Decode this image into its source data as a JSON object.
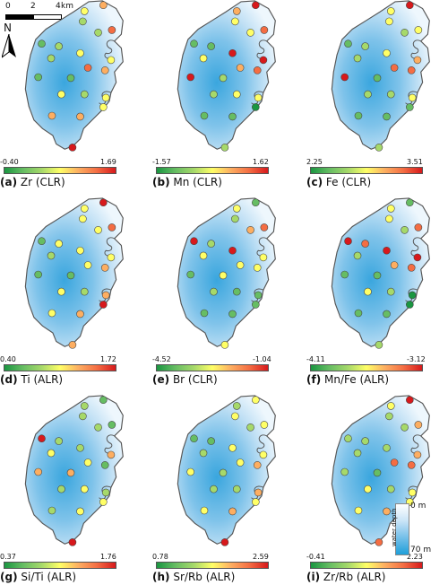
{
  "scalebar": {
    "ticks": [
      "0",
      "2",
      "4"
    ],
    "unit": "km"
  },
  "north_label": "N",
  "legend": {
    "top": "0 m",
    "bottom": "70 m",
    "title": "water depth"
  },
  "panels": [
    {
      "id": "(a)",
      "name": "Zr (CLR)",
      "min": "-0.40",
      "max": "1.69",
      "points": [
        [
          117,
          6,
          4
        ],
        [
          95,
          13,
          3
        ],
        [
          93,
          25,
          2
        ],
        [
          127,
          35,
          5
        ],
        [
          111,
          38,
          2
        ],
        [
          45,
          51,
          1
        ],
        [
          65,
          54,
          2
        ],
        [
          90,
          62,
          3
        ],
        [
          56,
          68,
          2
        ],
        [
          41,
          90,
          1
        ],
        [
          79,
          91,
          1
        ],
        [
          99,
          79,
          5
        ],
        [
          119,
          82,
          4
        ],
        [
          126,
          70,
          3
        ],
        [
          68,
          110,
          3
        ],
        [
          95,
          110,
          2
        ],
        [
          120,
          114,
          3
        ],
        [
          117,
          125,
          3
        ],
        [
          57,
          135,
          4
        ],
        [
          90,
          136,
          4
        ],
        [
          81,
          172,
          6
        ]
      ]
    },
    {
      "id": "(b)",
      "name": "Mn (CLR)",
      "min": "-1.57",
      "max": "1.62",
      "points": [
        [
          117,
          6,
          6
        ],
        [
          95,
          13,
          4
        ],
        [
          93,
          25,
          3
        ],
        [
          127,
          35,
          5
        ],
        [
          111,
          38,
          3
        ],
        [
          45,
          51,
          1
        ],
        [
          65,
          54,
          1
        ],
        [
          90,
          62,
          6
        ],
        [
          56,
          68,
          3
        ],
        [
          41,
          90,
          6
        ],
        [
          79,
          91,
          2
        ],
        [
          99,
          79,
          4
        ],
        [
          119,
          82,
          5
        ],
        [
          126,
          70,
          6
        ],
        [
          68,
          110,
          2
        ],
        [
          95,
          110,
          3
        ],
        [
          120,
          114,
          3
        ],
        [
          117,
          125,
          0
        ],
        [
          57,
          135,
          1
        ],
        [
          90,
          136,
          1
        ],
        [
          81,
          172,
          2
        ]
      ]
    },
    {
      "id": "(c)",
      "name": "Fe (CLR)",
      "min": "2.25",
      "max": "3.51",
      "points": [
        [
          117,
          6,
          6
        ],
        [
          95,
          13,
          3
        ],
        [
          93,
          25,
          3
        ],
        [
          127,
          35,
          3
        ],
        [
          111,
          38,
          2
        ],
        [
          45,
          51,
          1
        ],
        [
          65,
          54,
          2
        ],
        [
          90,
          62,
          3
        ],
        [
          56,
          68,
          2
        ],
        [
          41,
          90,
          6
        ],
        [
          79,
          91,
          1
        ],
        [
          99,
          79,
          5
        ],
        [
          119,
          82,
          5
        ],
        [
          126,
          70,
          4
        ],
        [
          68,
          110,
          2
        ],
        [
          95,
          110,
          2
        ],
        [
          120,
          114,
          3
        ],
        [
          117,
          125,
          1
        ],
        [
          57,
          135,
          1
        ],
        [
          90,
          136,
          1
        ],
        [
          81,
          172,
          2
        ]
      ]
    },
    {
      "id": "(d)",
      "name": "Ti (ALR)",
      "min": "0.40",
      "max": "1.72",
      "points": [
        [
          117,
          6,
          6
        ],
        [
          95,
          13,
          3
        ],
        [
          93,
          25,
          3
        ],
        [
          127,
          35,
          5
        ],
        [
          111,
          38,
          3
        ],
        [
          45,
          51,
          1
        ],
        [
          65,
          54,
          3
        ],
        [
          90,
          62,
          3
        ],
        [
          56,
          68,
          2
        ],
        [
          41,
          90,
          1
        ],
        [
          79,
          91,
          1
        ],
        [
          99,
          79,
          3
        ],
        [
          119,
          82,
          4
        ],
        [
          126,
          70,
          3
        ],
        [
          68,
          110,
          3
        ],
        [
          95,
          110,
          2
        ],
        [
          120,
          114,
          4
        ],
        [
          117,
          125,
          6
        ],
        [
          57,
          135,
          3
        ],
        [
          90,
          136,
          4
        ],
        [
          81,
          172,
          4
        ]
      ]
    },
    {
      "id": "(e)",
      "name": "Br (CLR)",
      "min": "-4.52",
      "max": "-1.04",
      "points": [
        [
          117,
          6,
          1
        ],
        [
          95,
          13,
          3
        ],
        [
          93,
          25,
          2
        ],
        [
          127,
          35,
          5
        ],
        [
          111,
          38,
          4
        ],
        [
          45,
          51,
          6
        ],
        [
          65,
          54,
          2
        ],
        [
          90,
          62,
          6
        ],
        [
          56,
          68,
          3
        ],
        [
          41,
          90,
          1
        ],
        [
          79,
          91,
          3
        ],
        [
          99,
          79,
          3
        ],
        [
          119,
          82,
          3
        ],
        [
          126,
          70,
          3
        ],
        [
          68,
          110,
          2
        ],
        [
          95,
          110,
          1
        ],
        [
          120,
          114,
          1
        ],
        [
          117,
          125,
          1
        ],
        [
          57,
          135,
          1
        ],
        [
          90,
          136,
          1
        ],
        [
          81,
          172,
          3
        ]
      ]
    },
    {
      "id": "(f)",
      "name": "Mn/Fe (ALR)",
      "min": "-4.11",
      "max": "-3.12",
      "points": [
        [
          117,
          6,
          1
        ],
        [
          95,
          13,
          3
        ],
        [
          93,
          25,
          3
        ],
        [
          127,
          35,
          5
        ],
        [
          111,
          38,
          2
        ],
        [
          45,
          51,
          6
        ],
        [
          65,
          54,
          5
        ],
        [
          90,
          62,
          6
        ],
        [
          56,
          68,
          2
        ],
        [
          41,
          90,
          1
        ],
        [
          79,
          91,
          1
        ],
        [
          99,
          79,
          4
        ],
        [
          119,
          82,
          5
        ],
        [
          126,
          70,
          6
        ],
        [
          68,
          110,
          3
        ],
        [
          95,
          110,
          2
        ],
        [
          120,
          114,
          0
        ],
        [
          117,
          125,
          0
        ],
        [
          57,
          135,
          1
        ],
        [
          90,
          136,
          1
        ],
        [
          81,
          172,
          2
        ]
      ]
    },
    {
      "id": "(g)",
      "name": "Si/Ti (ALR)",
      "min": "0.37",
      "max": "1.76",
      "points": [
        [
          117,
          6,
          1
        ],
        [
          95,
          13,
          2
        ],
        [
          93,
          25,
          2
        ],
        [
          127,
          35,
          1
        ],
        [
          111,
          38,
          2
        ],
        [
          45,
          51,
          6
        ],
        [
          65,
          54,
          2
        ],
        [
          90,
          62,
          2
        ],
        [
          56,
          68,
          3
        ],
        [
          41,
          90,
          4
        ],
        [
          79,
          91,
          4
        ],
        [
          99,
          79,
          3
        ],
        [
          119,
          82,
          1
        ],
        [
          126,
          70,
          4
        ],
        [
          68,
          110,
          2
        ],
        [
          95,
          110,
          3
        ],
        [
          120,
          114,
          2
        ],
        [
          117,
          125,
          3
        ],
        [
          57,
          135,
          2
        ],
        [
          90,
          136,
          3
        ],
        [
          81,
          172,
          6
        ]
      ]
    },
    {
      "id": "(h)",
      "name": "Sr/Rb (ALR)",
      "min": "0.78",
      "max": "2.59",
      "points": [
        [
          117,
          6,
          3
        ],
        [
          95,
          13,
          2
        ],
        [
          93,
          25,
          3
        ],
        [
          127,
          35,
          3
        ],
        [
          111,
          38,
          2
        ],
        [
          45,
          51,
          1
        ],
        [
          65,
          54,
          1
        ],
        [
          90,
          62,
          3
        ],
        [
          56,
          68,
          2
        ],
        [
          41,
          90,
          3
        ],
        [
          79,
          91,
          2
        ],
        [
          99,
          79,
          3
        ],
        [
          119,
          82,
          4
        ],
        [
          126,
          70,
          3
        ],
        [
          68,
          110,
          2
        ],
        [
          95,
          110,
          2
        ],
        [
          120,
          114,
          4
        ],
        [
          117,
          125,
          3
        ],
        [
          57,
          135,
          3
        ],
        [
          90,
          136,
          4
        ],
        [
          81,
          172,
          6
        ]
      ]
    },
    {
      "id": "(i)",
      "name": "Zr/Rb (ALR)",
      "min": "-0.41",
      "max": "2.23",
      "points": [
        [
          117,
          6,
          6
        ],
        [
          95,
          13,
          3
        ],
        [
          93,
          25,
          2
        ],
        [
          127,
          35,
          4
        ],
        [
          111,
          38,
          2
        ],
        [
          45,
          51,
          2
        ],
        [
          65,
          54,
          2
        ],
        [
          90,
          62,
          2
        ],
        [
          56,
          68,
          2
        ],
        [
          41,
          90,
          2
        ],
        [
          79,
          91,
          1
        ],
        [
          99,
          79,
          5
        ],
        [
          119,
          82,
          5
        ],
        [
          126,
          70,
          4
        ],
        [
          68,
          110,
          3
        ],
        [
          95,
          110,
          2
        ],
        [
          120,
          114,
          3
        ],
        [
          117,
          125,
          3
        ],
        [
          57,
          135,
          3
        ],
        [
          90,
          136,
          4
        ],
        [
          81,
          172,
          5
        ]
      ]
    }
  ],
  "ramp_colors": [
    "#1a9641",
    "#66bd63",
    "#a6d96a",
    "#ffff66",
    "#fdae61",
    "#f46d43",
    "#d7191c"
  ]
}
